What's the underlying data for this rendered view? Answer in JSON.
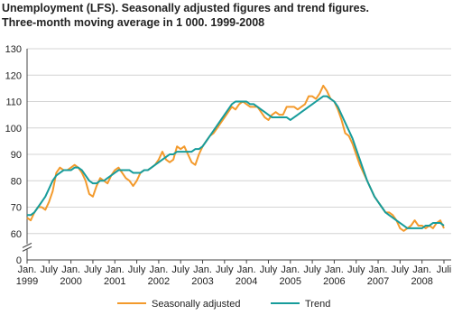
{
  "chart_data": {
    "type": "line",
    "title": "Unemployment (LFS). Seasonally adjusted figures and trend figures.",
    "subtitle": "Three-month moving average in 1 000. 1999-2008",
    "categories": [
      [
        "Jan.",
        "1999"
      ],
      null,
      null,
      null,
      null,
      null,
      "July",
      null,
      null,
      null,
      null,
      null,
      [
        "Jan.",
        "2000"
      ],
      null,
      null,
      null,
      null,
      null,
      "July",
      null,
      null,
      null,
      null,
      null,
      [
        "Jan.",
        "2001"
      ],
      null,
      null,
      null,
      null,
      null,
      "July",
      null,
      null,
      null,
      null,
      null,
      [
        "Jan.",
        "2002"
      ],
      null,
      null,
      null,
      null,
      null,
      "July",
      null,
      null,
      null,
      null,
      null,
      [
        "Jan.",
        "2003"
      ],
      null,
      null,
      null,
      null,
      null,
      "July",
      null,
      null,
      null,
      null,
      null,
      [
        "Jan.",
        "2004"
      ],
      null,
      null,
      null,
      null,
      null,
      "July",
      null,
      null,
      null,
      null,
      null,
      [
        "Jan.",
        "2005"
      ],
      null,
      null,
      null,
      null,
      null,
      "July",
      null,
      null,
      null,
      null,
      null,
      [
        "Jan.",
        "2006"
      ],
      null,
      null,
      null,
      null,
      null,
      "July",
      null,
      null,
      null,
      null,
      null,
      [
        "Jan.",
        "2007"
      ],
      null,
      null,
      null,
      null,
      null,
      "July",
      null,
      null,
      null,
      null,
      null,
      [
        "Jan.",
        "2008"
      ],
      null,
      null,
      null,
      null,
      null,
      "Juli"
    ],
    "series": [
      {
        "name": "Seasonally adjusted",
        "color": "#f39a2c",
        "values": [
          66,
          65,
          68,
          70,
          70,
          69,
          72,
          76,
          83,
          85,
          84,
          84,
          85,
          86,
          85,
          83,
          80,
          75,
          74,
          78,
          81,
          80,
          79,
          82,
          84,
          85,
          83,
          81,
          80,
          78,
          80,
          83,
          84,
          84,
          85,
          86,
          88,
          91,
          88,
          87,
          88,
          93,
          92,
          93,
          90,
          87,
          86,
          90,
          93,
          95,
          97,
          98,
          100,
          102,
          104,
          106,
          108,
          107,
          109,
          110,
          109,
          108,
          108,
          108,
          106,
          104,
          103,
          105,
          106,
          105,
          105,
          108,
          108,
          108,
          107,
          108,
          109,
          112,
          112,
          111,
          113,
          116,
          114,
          111,
          110,
          107,
          103,
          98,
          97,
          94,
          90,
          86,
          83,
          80,
          77,
          74,
          72,
          70,
          68,
          68,
          67,
          65,
          62,
          61,
          62,
          63,
          65,
          63,
          63,
          62,
          63,
          62,
          64,
          65,
          62
        ]
      },
      {
        "name": "Trend",
        "color": "#179c9b",
        "values": [
          67,
          67,
          68,
          70,
          72,
          74,
          77,
          80,
          82,
          83,
          84,
          84,
          84,
          85,
          85,
          84,
          82,
          80,
          79,
          79,
          80,
          80,
          81,
          82,
          83,
          84,
          84,
          84,
          84,
          83,
          83,
          83,
          84,
          84,
          85,
          86,
          87,
          88,
          89,
          90,
          90,
          91,
          91,
          91,
          91,
          91,
          92,
          92,
          93,
          95,
          97,
          99,
          101,
          103,
          105,
          107,
          109,
          110,
          110,
          110,
          110,
          109,
          109,
          108,
          107,
          106,
          105,
          104,
          104,
          104,
          104,
          104,
          103,
          104,
          105,
          106,
          107,
          108,
          109,
          110,
          111,
          112,
          112,
          111,
          110,
          108,
          105,
          102,
          99,
          96,
          92,
          88,
          84,
          80,
          77,
          74,
          72,
          70,
          68,
          67,
          66,
          65,
          64,
          63,
          62,
          62,
          62,
          62,
          62,
          63,
          63,
          64,
          64,
          64,
          63
        ]
      }
    ],
    "ylim": [
      0,
      130
    ],
    "yticks": [
      0,
      60,
      70,
      80,
      90,
      100,
      110,
      120,
      130
    ],
    "axis_break": true,
    "grid": true,
    "legend": "bottom"
  }
}
